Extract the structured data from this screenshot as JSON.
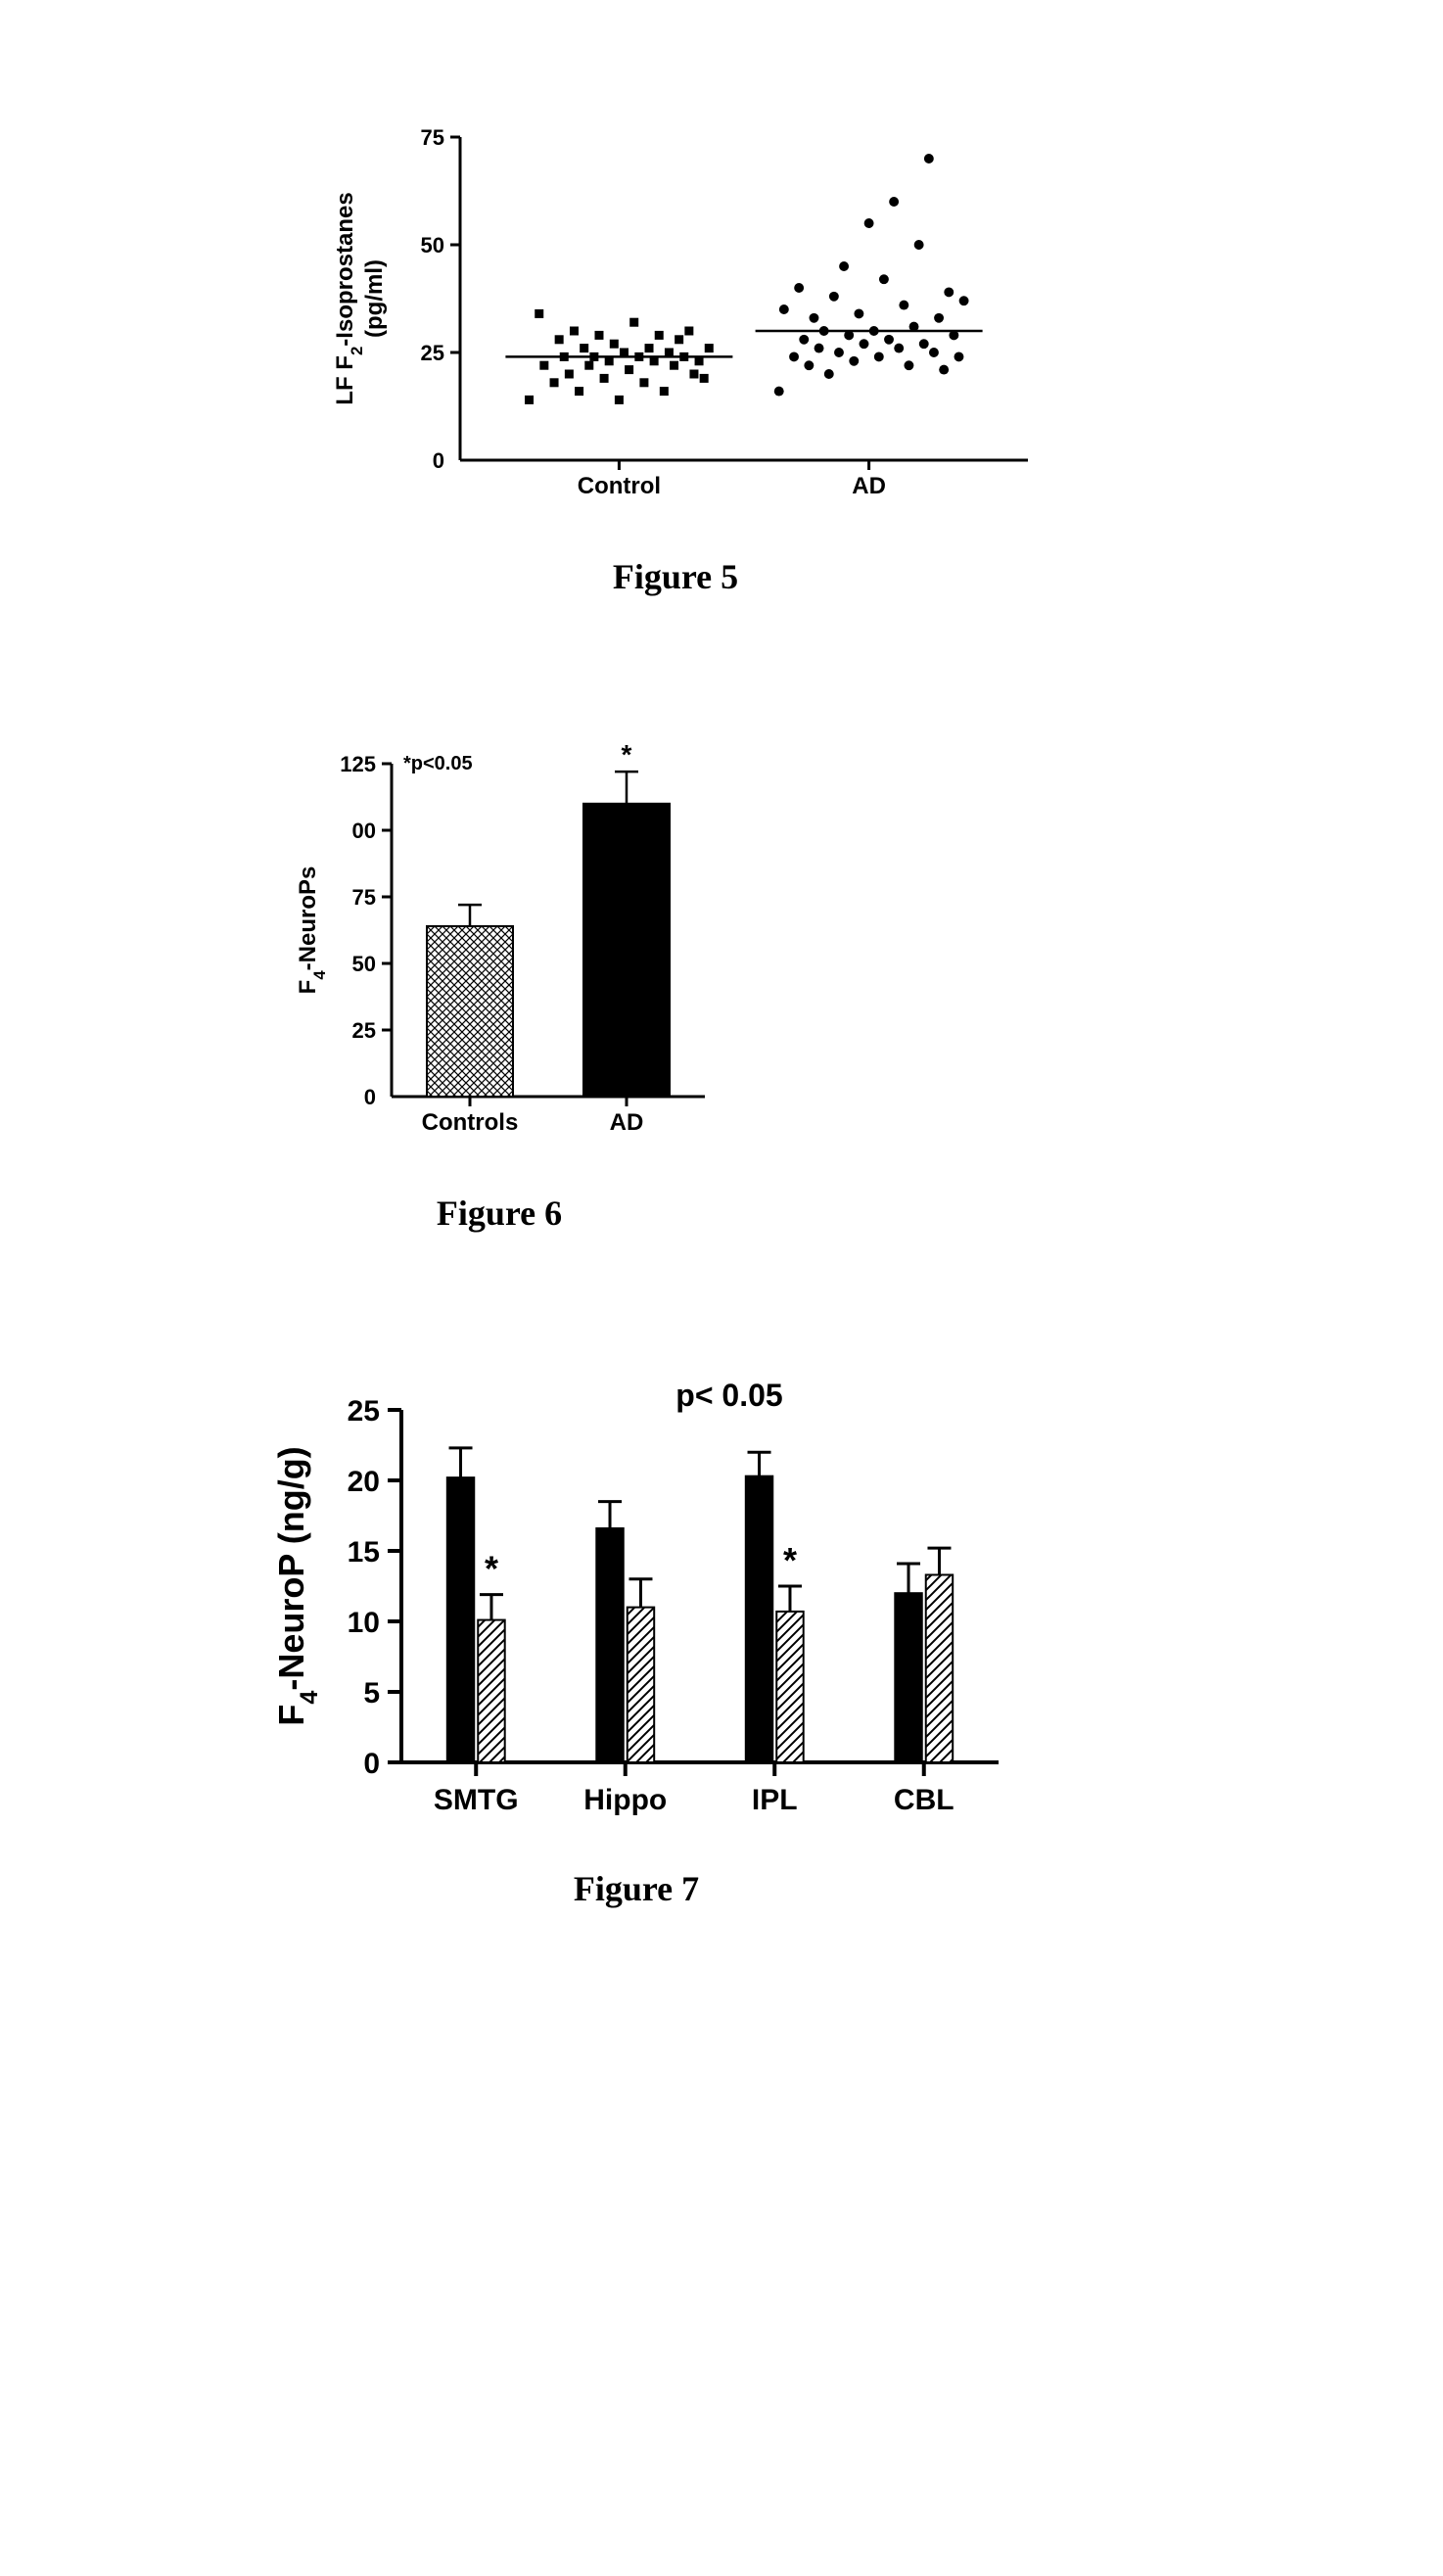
{
  "figure5": {
    "type": "scatter-strip",
    "caption": "Figure 5",
    "y_label_line1": "LF F",
    "y_label_sub": "2",
    "y_label_line1b": "-Isoprostanes",
    "y_label_line2": "(pg/ml)",
    "ylim": [
      0,
      75
    ],
    "yticks": [
      0,
      25,
      50,
      75
    ],
    "ytick_labels": [
      "0",
      "25",
      "50",
      "75"
    ],
    "categories": [
      "Control",
      "AD"
    ],
    "axis_color": "#000000",
    "background_color": "#ffffff",
    "tick_font_size": 22,
    "label_font_size": 24,
    "marker_size": 9,
    "control": {
      "marker": "square",
      "color": "#000000",
      "mean_line_y": 24,
      "points": [
        {
          "x": -0.36,
          "y": 14
        },
        {
          "x": -0.32,
          "y": 34
        },
        {
          "x": -0.3,
          "y": 22
        },
        {
          "x": -0.26,
          "y": 18
        },
        {
          "x": -0.24,
          "y": 28
        },
        {
          "x": -0.22,
          "y": 24
        },
        {
          "x": -0.2,
          "y": 20
        },
        {
          "x": -0.18,
          "y": 30
        },
        {
          "x": -0.16,
          "y": 16
        },
        {
          "x": -0.14,
          "y": 26
        },
        {
          "x": -0.12,
          "y": 22
        },
        {
          "x": -0.1,
          "y": 24
        },
        {
          "x": -0.08,
          "y": 29
        },
        {
          "x": -0.06,
          "y": 19
        },
        {
          "x": -0.04,
          "y": 23
        },
        {
          "x": -0.02,
          "y": 27
        },
        {
          "x": 0.0,
          "y": 14
        },
        {
          "x": 0.02,
          "y": 25
        },
        {
          "x": 0.04,
          "y": 21
        },
        {
          "x": 0.06,
          "y": 32
        },
        {
          "x": 0.08,
          "y": 24
        },
        {
          "x": 0.1,
          "y": 18
        },
        {
          "x": 0.12,
          "y": 26
        },
        {
          "x": 0.14,
          "y": 23
        },
        {
          "x": 0.16,
          "y": 29
        },
        {
          "x": 0.18,
          "y": 16
        },
        {
          "x": 0.2,
          "y": 25
        },
        {
          "x": 0.22,
          "y": 22
        },
        {
          "x": 0.24,
          "y": 28
        },
        {
          "x": 0.26,
          "y": 24
        },
        {
          "x": 0.28,
          "y": 30
        },
        {
          "x": 0.3,
          "y": 20
        },
        {
          "x": 0.32,
          "y": 23
        },
        {
          "x": 0.34,
          "y": 19
        },
        {
          "x": 0.36,
          "y": 26
        }
      ]
    },
    "ad": {
      "marker": "circle",
      "color": "#000000",
      "mean_line_y": 30,
      "points": [
        {
          "x": -0.36,
          "y": 16
        },
        {
          "x": -0.34,
          "y": 35
        },
        {
          "x": -0.3,
          "y": 24
        },
        {
          "x": -0.28,
          "y": 40
        },
        {
          "x": -0.26,
          "y": 28
        },
        {
          "x": -0.24,
          "y": 22
        },
        {
          "x": -0.22,
          "y": 33
        },
        {
          "x": -0.2,
          "y": 26
        },
        {
          "x": -0.18,
          "y": 30
        },
        {
          "x": -0.16,
          "y": 20
        },
        {
          "x": -0.14,
          "y": 38
        },
        {
          "x": -0.12,
          "y": 25
        },
        {
          "x": -0.1,
          "y": 45
        },
        {
          "x": -0.08,
          "y": 29
        },
        {
          "x": -0.06,
          "y": 23
        },
        {
          "x": -0.04,
          "y": 34
        },
        {
          "x": -0.02,
          "y": 27
        },
        {
          "x": 0.0,
          "y": 55
        },
        {
          "x": 0.02,
          "y": 30
        },
        {
          "x": 0.04,
          "y": 24
        },
        {
          "x": 0.06,
          "y": 42
        },
        {
          "x": 0.08,
          "y": 28
        },
        {
          "x": 0.1,
          "y": 60
        },
        {
          "x": 0.12,
          "y": 26
        },
        {
          "x": 0.14,
          "y": 36
        },
        {
          "x": 0.16,
          "y": 22
        },
        {
          "x": 0.18,
          "y": 31
        },
        {
          "x": 0.2,
          "y": 50
        },
        {
          "x": 0.22,
          "y": 27
        },
        {
          "x": 0.24,
          "y": 70
        },
        {
          "x": 0.26,
          "y": 25
        },
        {
          "x": 0.28,
          "y": 33
        },
        {
          "x": 0.3,
          "y": 21
        },
        {
          "x": 0.32,
          "y": 39
        },
        {
          "x": 0.34,
          "y": 29
        },
        {
          "x": 0.36,
          "y": 24
        },
        {
          "x": 0.38,
          "y": 37
        }
      ]
    }
  },
  "figure6": {
    "type": "bar",
    "caption": "Figure 6",
    "y_label_line1": "F",
    "y_label_sub": "4",
    "y_label_line1b": "-NeuroPs",
    "annotation": "*p<0.05",
    "star": "*",
    "ylim": [
      0,
      125
    ],
    "yticks": [
      0,
      25,
      50,
      75,
      100,
      125
    ],
    "ytick_labels": [
      "0",
      "25",
      "50",
      "75",
      "00",
      "125"
    ],
    "categories": [
      "Controls",
      "AD"
    ],
    "axis_color": "#000000",
    "background_color": "#ffffff",
    "tick_font_size": 22,
    "label_font_size": 24,
    "bar_width": 0.55,
    "bars": [
      {
        "x": 0,
        "value": 64,
        "error": 8,
        "fill": "crosshatch",
        "color": "#000000"
      },
      {
        "x": 1,
        "value": 110,
        "error": 12,
        "fill": "solid",
        "color": "#000000",
        "star": true
      }
    ]
  },
  "figure7": {
    "type": "grouped-bar",
    "caption": "Figure 7",
    "y_label_line1": "F",
    "y_label_sub": "4",
    "y_label_line1b": "-NeuroP (ng/g)",
    "annotation": "p< 0.05",
    "star": "*",
    "ylim": [
      0,
      25
    ],
    "yticks": [
      0,
      5,
      10,
      15,
      20,
      25
    ],
    "ytick_labels": [
      "0",
      "5",
      "10",
      "15",
      "20",
      "25"
    ],
    "categories": [
      "SMTG",
      "Hippo",
      "IPL",
      "CBL"
    ],
    "axis_color": "#000000",
    "background_color": "#ffffff",
    "tick_font_size": 30,
    "label_font_size": 36,
    "bar_width": 0.36,
    "groups": [
      {
        "category": "SMTG",
        "bars": [
          {
            "kind": "solid",
            "value": 20.2,
            "error": 2.1,
            "color": "#000000"
          },
          {
            "kind": "diag",
            "value": 10.1,
            "error": 1.8,
            "color": "#000000",
            "star": true
          }
        ]
      },
      {
        "category": "Hippo",
        "bars": [
          {
            "kind": "solid",
            "value": 16.6,
            "error": 1.9,
            "color": "#000000"
          },
          {
            "kind": "diag",
            "value": 11.0,
            "error": 2.0,
            "color": "#000000"
          }
        ]
      },
      {
        "category": "IPL",
        "bars": [
          {
            "kind": "solid",
            "value": 20.3,
            "error": 1.7,
            "color": "#000000"
          },
          {
            "kind": "diag",
            "value": 10.7,
            "error": 1.8,
            "color": "#000000",
            "star": true
          }
        ]
      },
      {
        "category": "CBL",
        "bars": [
          {
            "kind": "solid",
            "value": 12.0,
            "error": 2.1,
            "color": "#000000"
          },
          {
            "kind": "diag",
            "value": 13.3,
            "error": 1.9,
            "color": "#000000"
          }
        ]
      }
    ]
  }
}
